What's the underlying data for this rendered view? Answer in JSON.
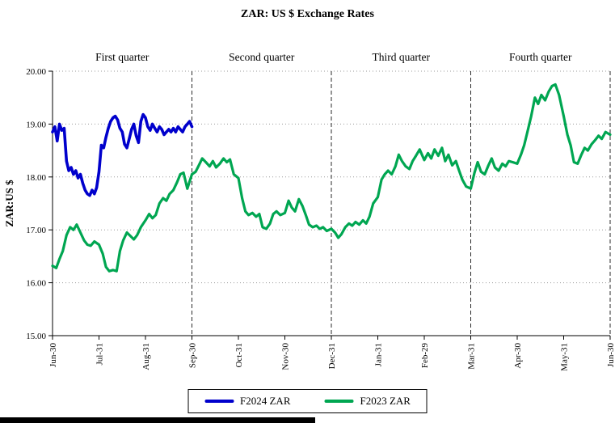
{
  "title": "ZAR: US $ Exchange Rates",
  "chart_data": {
    "type": "line",
    "title": "ZAR: US $ Exchange Rates",
    "xlabel": "",
    "ylabel": "ZAR:US $",
    "ylim": [
      15,
      20
    ],
    "xlim": [
      0,
      12
    ],
    "grid": true,
    "legend_position": "bottom",
    "x_axis_note": "x = months after the first Jun-30 tick; ticks at integer positions",
    "ytick_labels": [
      "15.00",
      "16.00",
      "17.00",
      "18.00",
      "19.00",
      "20.00"
    ],
    "x_tick_labels": [
      "Jun-30",
      "Jul-31",
      "Aug-31",
      "Sep-30",
      "Oct-31",
      "Nov-30",
      "Dec-31",
      "Jan-31",
      "Feb-29",
      "Mar-31",
      "Apr-30",
      "May-31",
      "Jun-30"
    ],
    "quarter_labels": [
      {
        "label": "First quarter",
        "x_center": 1.5
      },
      {
        "label": "Second quarter",
        "x_center": 4.5
      },
      {
        "label": "Third quarter",
        "x_center": 7.5
      },
      {
        "label": "Fourth quarter",
        "x_center": 10.5
      }
    ],
    "quarter_separators_x": [
      3,
      6,
      9,
      12
    ],
    "series": [
      {
        "name": "F2024 ZAR",
        "color": "#0000cc",
        "stroke_width": 3.6,
        "points": [
          [
            0.0,
            18.85
          ],
          [
            0.05,
            18.95
          ],
          [
            0.1,
            18.68
          ],
          [
            0.15,
            19.0
          ],
          [
            0.2,
            18.88
          ],
          [
            0.25,
            18.92
          ],
          [
            0.3,
            18.3
          ],
          [
            0.35,
            18.12
          ],
          [
            0.4,
            18.18
          ],
          [
            0.45,
            18.05
          ],
          [
            0.5,
            18.12
          ],
          [
            0.55,
            17.98
          ],
          [
            0.6,
            18.05
          ],
          [
            0.65,
            17.88
          ],
          [
            0.7,
            17.75
          ],
          [
            0.75,
            17.68
          ],
          [
            0.8,
            17.65
          ],
          [
            0.85,
            17.75
          ],
          [
            0.9,
            17.68
          ],
          [
            0.95,
            17.8
          ],
          [
            1.0,
            18.1
          ],
          [
            1.05,
            18.6
          ],
          [
            1.1,
            18.55
          ],
          [
            1.15,
            18.75
          ],
          [
            1.2,
            18.92
          ],
          [
            1.25,
            19.05
          ],
          [
            1.3,
            19.12
          ],
          [
            1.35,
            19.15
          ],
          [
            1.4,
            19.08
          ],
          [
            1.45,
            18.92
          ],
          [
            1.5,
            18.85
          ],
          [
            1.55,
            18.62
          ],
          [
            1.6,
            18.55
          ],
          [
            1.65,
            18.72
          ],
          [
            1.7,
            18.9
          ],
          [
            1.75,
            19.0
          ],
          [
            1.8,
            18.78
          ],
          [
            1.85,
            18.65
          ],
          [
            1.9,
            19.05
          ],
          [
            1.95,
            19.18
          ],
          [
            2.0,
            19.12
          ],
          [
            2.05,
            18.95
          ],
          [
            2.1,
            18.88
          ],
          [
            2.15,
            19.0
          ],
          [
            2.2,
            18.92
          ],
          [
            2.25,
            18.85
          ],
          [
            2.3,
            18.95
          ],
          [
            2.35,
            18.9
          ],
          [
            2.4,
            18.8
          ],
          [
            2.45,
            18.85
          ],
          [
            2.5,
            18.9
          ],
          [
            2.55,
            18.85
          ],
          [
            2.6,
            18.92
          ],
          [
            2.65,
            18.85
          ],
          [
            2.7,
            18.95
          ],
          [
            2.75,
            18.9
          ],
          [
            2.8,
            18.85
          ],
          [
            2.85,
            18.95
          ],
          [
            2.9,
            19.0
          ],
          [
            2.95,
            19.05
          ],
          [
            3.0,
            18.95
          ]
        ]
      },
      {
        "name": "F2023 ZAR",
        "color": "#00a651",
        "stroke_width": 3.2,
        "points": [
          [
            0.0,
            16.32
          ],
          [
            0.08,
            16.28
          ],
          [
            0.15,
            16.45
          ],
          [
            0.22,
            16.6
          ],
          [
            0.3,
            16.9
          ],
          [
            0.38,
            17.05
          ],
          [
            0.45,
            17.0
          ],
          [
            0.52,
            17.1
          ],
          [
            0.6,
            16.95
          ],
          [
            0.68,
            16.8
          ],
          [
            0.75,
            16.72
          ],
          [
            0.82,
            16.7
          ],
          [
            0.9,
            16.78
          ],
          [
            1.0,
            16.72
          ],
          [
            1.08,
            16.55
          ],
          [
            1.15,
            16.3
          ],
          [
            1.22,
            16.22
          ],
          [
            1.3,
            16.24
          ],
          [
            1.38,
            16.22
          ],
          [
            1.45,
            16.6
          ],
          [
            1.52,
            16.8
          ],
          [
            1.6,
            16.95
          ],
          [
            1.68,
            16.88
          ],
          [
            1.75,
            16.82
          ],
          [
            1.82,
            16.9
          ],
          [
            1.9,
            17.05
          ],
          [
            2.0,
            17.18
          ],
          [
            2.08,
            17.3
          ],
          [
            2.15,
            17.22
          ],
          [
            2.22,
            17.28
          ],
          [
            2.3,
            17.5
          ],
          [
            2.38,
            17.6
          ],
          [
            2.45,
            17.55
          ],
          [
            2.52,
            17.68
          ],
          [
            2.6,
            17.75
          ],
          [
            2.68,
            17.9
          ],
          [
            2.75,
            18.05
          ],
          [
            2.82,
            18.08
          ],
          [
            2.9,
            17.78
          ],
          [
            3.0,
            18.05
          ],
          [
            3.08,
            18.1
          ],
          [
            3.15,
            18.22
          ],
          [
            3.22,
            18.35
          ],
          [
            3.3,
            18.28
          ],
          [
            3.38,
            18.2
          ],
          [
            3.45,
            18.3
          ],
          [
            3.52,
            18.18
          ],
          [
            3.6,
            18.25
          ],
          [
            3.68,
            18.35
          ],
          [
            3.75,
            18.28
          ],
          [
            3.82,
            18.33
          ],
          [
            3.9,
            18.05
          ],
          [
            4.0,
            17.98
          ],
          [
            4.08,
            17.6
          ],
          [
            4.15,
            17.35
          ],
          [
            4.22,
            17.28
          ],
          [
            4.3,
            17.32
          ],
          [
            4.38,
            17.25
          ],
          [
            4.45,
            17.3
          ],
          [
            4.52,
            17.05
          ],
          [
            4.6,
            17.02
          ],
          [
            4.68,
            17.12
          ],
          [
            4.75,
            17.3
          ],
          [
            4.82,
            17.35
          ],
          [
            4.9,
            17.28
          ],
          [
            5.0,
            17.32
          ],
          [
            5.08,
            17.55
          ],
          [
            5.15,
            17.42
          ],
          [
            5.22,
            17.35
          ],
          [
            5.3,
            17.58
          ],
          [
            5.38,
            17.45
          ],
          [
            5.45,
            17.28
          ],
          [
            5.52,
            17.1
          ],
          [
            5.6,
            17.05
          ],
          [
            5.68,
            17.08
          ],
          [
            5.75,
            17.02
          ],
          [
            5.82,
            17.05
          ],
          [
            5.9,
            16.98
          ],
          [
            6.0,
            17.02
          ],
          [
            6.08,
            16.95
          ],
          [
            6.15,
            16.85
          ],
          [
            6.22,
            16.92
          ],
          [
            6.3,
            17.05
          ],
          [
            6.38,
            17.12
          ],
          [
            6.45,
            17.08
          ],
          [
            6.52,
            17.15
          ],
          [
            6.6,
            17.1
          ],
          [
            6.68,
            17.18
          ],
          [
            6.75,
            17.12
          ],
          [
            6.82,
            17.25
          ],
          [
            6.9,
            17.5
          ],
          [
            7.0,
            17.62
          ],
          [
            7.08,
            17.95
          ],
          [
            7.15,
            18.05
          ],
          [
            7.22,
            18.12
          ],
          [
            7.3,
            18.05
          ],
          [
            7.38,
            18.2
          ],
          [
            7.45,
            18.42
          ],
          [
            7.52,
            18.3
          ],
          [
            7.6,
            18.2
          ],
          [
            7.68,
            18.15
          ],
          [
            7.75,
            18.3
          ],
          [
            7.82,
            18.4
          ],
          [
            7.9,
            18.52
          ],
          [
            8.0,
            18.32
          ],
          [
            8.08,
            18.45
          ],
          [
            8.15,
            18.35
          ],
          [
            8.22,
            18.52
          ],
          [
            8.3,
            18.4
          ],
          [
            8.38,
            18.55
          ],
          [
            8.45,
            18.3
          ],
          [
            8.52,
            18.42
          ],
          [
            8.6,
            18.22
          ],
          [
            8.68,
            18.3
          ],
          [
            8.75,
            18.12
          ],
          [
            8.82,
            17.95
          ],
          [
            8.9,
            17.82
          ],
          [
            9.0,
            17.78
          ],
          [
            9.08,
            18.08
          ],
          [
            9.15,
            18.28
          ],
          [
            9.22,
            18.1
          ],
          [
            9.3,
            18.05
          ],
          [
            9.38,
            18.22
          ],
          [
            9.45,
            18.35
          ],
          [
            9.52,
            18.18
          ],
          [
            9.6,
            18.12
          ],
          [
            9.68,
            18.25
          ],
          [
            9.75,
            18.2
          ],
          [
            9.82,
            18.3
          ],
          [
            9.9,
            18.28
          ],
          [
            10.0,
            18.25
          ],
          [
            10.08,
            18.42
          ],
          [
            10.15,
            18.6
          ],
          [
            10.22,
            18.85
          ],
          [
            10.3,
            19.15
          ],
          [
            10.38,
            19.5
          ],
          [
            10.45,
            19.38
          ],
          [
            10.52,
            19.55
          ],
          [
            10.6,
            19.45
          ],
          [
            10.68,
            19.62
          ],
          [
            10.75,
            19.72
          ],
          [
            10.82,
            19.75
          ],
          [
            10.9,
            19.55
          ],
          [
            11.0,
            19.15
          ],
          [
            11.08,
            18.8
          ],
          [
            11.15,
            18.6
          ],
          [
            11.22,
            18.28
          ],
          [
            11.3,
            18.25
          ],
          [
            11.38,
            18.42
          ],
          [
            11.45,
            18.55
          ],
          [
            11.52,
            18.5
          ],
          [
            11.6,
            18.62
          ],
          [
            11.68,
            18.7
          ],
          [
            11.75,
            18.78
          ],
          [
            11.82,
            18.72
          ],
          [
            11.9,
            18.85
          ],
          [
            12.0,
            18.8
          ]
        ]
      }
    ]
  }
}
